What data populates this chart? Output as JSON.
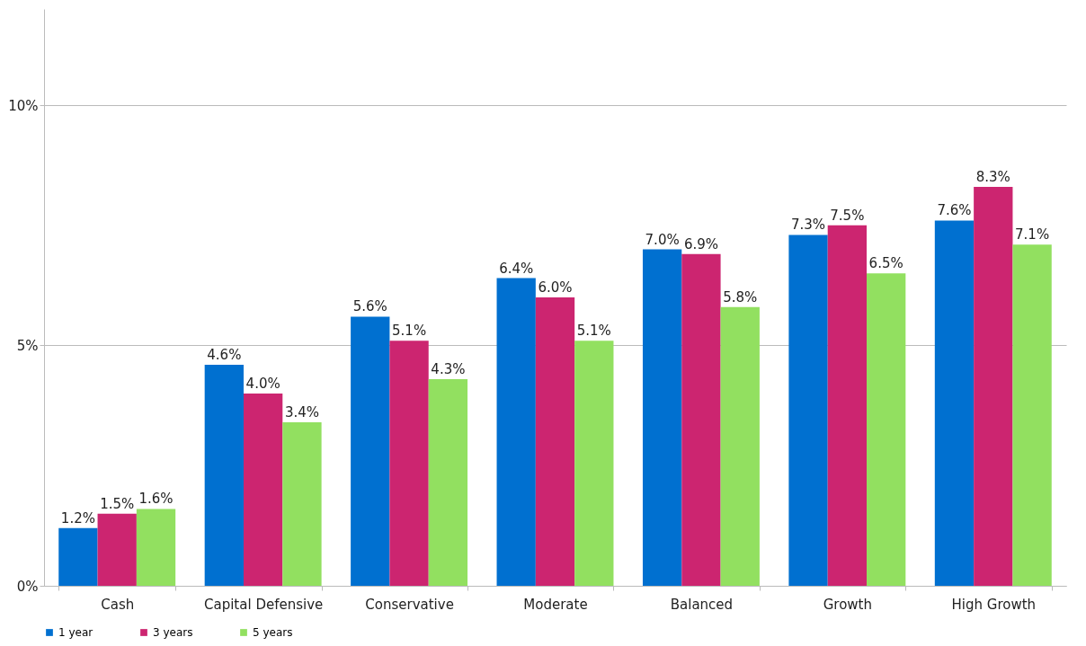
{
  "chart_data": {
    "type": "bar",
    "categories": [
      "Cash",
      "Capital Defensive",
      "Conservative",
      "Moderate",
      "Balanced",
      "Growth",
      "High Growth"
    ],
    "series": [
      {
        "name": "1 year",
        "color": "#0070d0",
        "values": [
          1.2,
          4.6,
          5.6,
          6.4,
          7.0,
          7.3,
          7.6
        ],
        "value_labels": [
          "1.2%",
          "4.6%",
          "5.6%",
          "6.4%",
          "7.0%",
          "7.3%",
          "7.6%"
        ]
      },
      {
        "name": "3 years",
        "color": "#cc2570",
        "values": [
          1.5,
          4.0,
          5.1,
          6.0,
          6.9,
          7.5,
          8.3
        ],
        "value_labels": [
          "1.5%",
          "4.0%",
          "5.1%",
          "6.0%",
          "6.9%",
          "7.5%",
          "8.3%"
        ]
      },
      {
        "name": "5 years",
        "color": "#92e060",
        "values": [
          1.6,
          3.4,
          4.3,
          5.1,
          5.8,
          6.5,
          7.1
        ],
        "value_labels": [
          "1.6%",
          "3.4%",
          "4.3%",
          "5.1%",
          "5.8%",
          "6.5%",
          "7.1%"
        ]
      }
    ],
    "ylim": [
      0,
      12
    ],
    "yticks": [
      {
        "value": 0,
        "label": "0%"
      },
      {
        "value": 5,
        "label": "5%"
      },
      {
        "value": 10,
        "label": "10%"
      }
    ],
    "grid": "y",
    "legend": "bottom"
  }
}
